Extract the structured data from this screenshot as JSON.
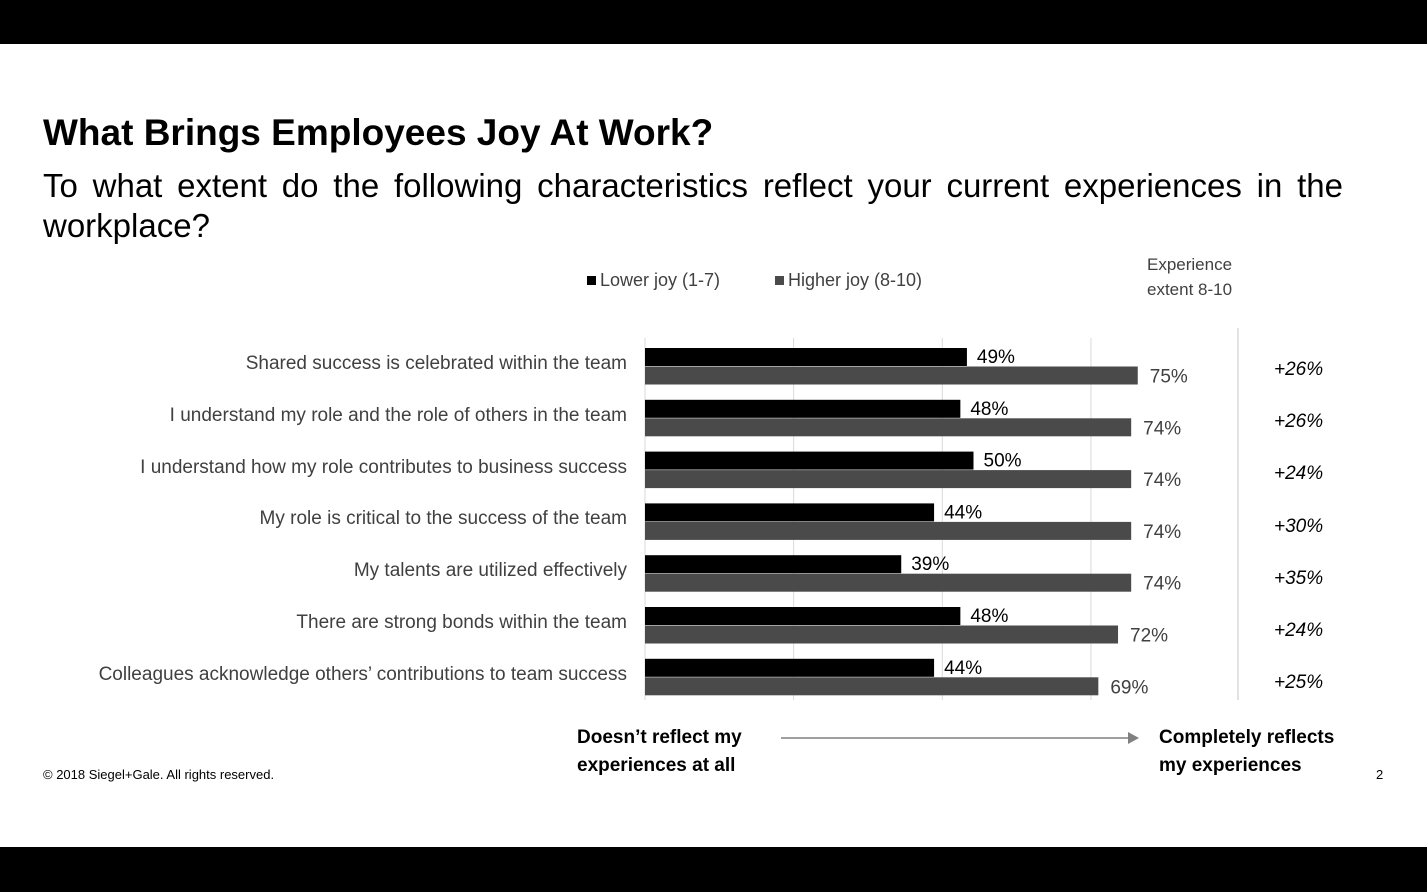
{
  "slide": {
    "title": "What Brings Employees Joy At Work?",
    "subtitle": "To what extent do the following characteristics reflect your current experiences in the workplace?",
    "extent_header_line1": "Experience",
    "extent_header_line2": "extent 8-10",
    "footer_left_line1": "Doesn’t reflect my",
    "footer_left_line2": "experiences at all",
    "footer_right_line1": "Completely reflects",
    "footer_right_line2": "my experiences",
    "copyright": "© 2018 Siegel+Gale. All rights reserved.",
    "page_number": "2"
  },
  "colors": {
    "lower_joy": "#000000",
    "higher_joy": "#4a4a4a",
    "gridline": "#d9d9d9",
    "arrow": "#808080"
  },
  "chart_data": {
    "type": "bar",
    "orientation": "horizontal",
    "categories": [
      "Shared success is celebrated within the team",
      "I understand my role and the role of others in the team",
      "I understand how my role contributes to business success",
      "My role is critical to the success of the team",
      "My talents are utilized effectively",
      "There are strong bonds within the team",
      "Colleagues acknowledge others’ contributions to team success"
    ],
    "series": [
      {
        "name": "Lower joy (1-7)",
        "values": [
          49,
          48,
          50,
          44,
          39,
          48,
          44
        ],
        "labels": [
          "49%",
          "48%",
          "50%",
          "44%",
          "39%",
          "48%",
          "44%"
        ]
      },
      {
        "name": "Higher joy (8-10)",
        "values": [
          75,
          74,
          74,
          74,
          74,
          72,
          69
        ],
        "labels": [
          "75%",
          "74%",
          "74%",
          "74%",
          "74%",
          "72%",
          "69%"
        ]
      }
    ],
    "differences": [
      "+26%",
      "+26%",
      "+24%",
      "+30%",
      "+35%",
      "+24%",
      "+25%"
    ],
    "xlim": [
      0,
      100
    ],
    "grid": true,
    "legend_position": "top"
  }
}
